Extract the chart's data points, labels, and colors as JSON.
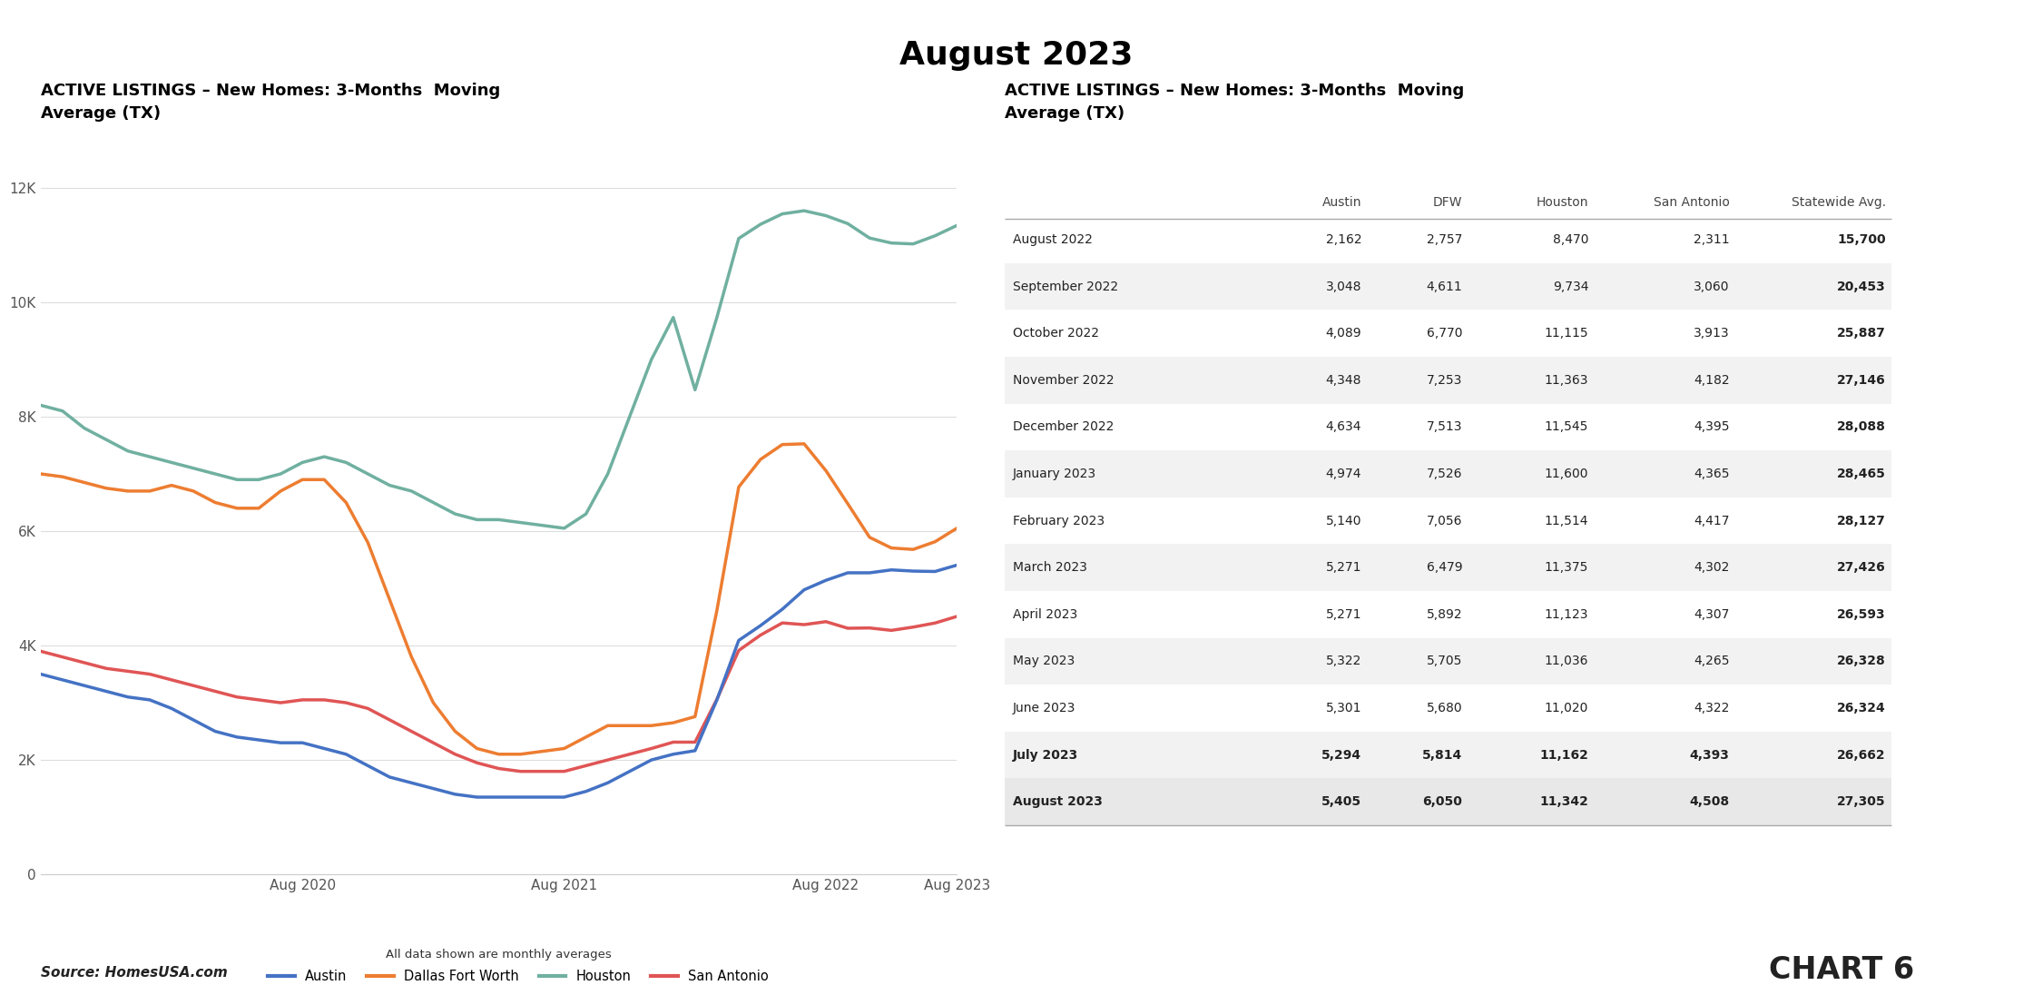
{
  "title": "August 2023",
  "chart_title": "ACTIVE LISTINGS – New Homes: 3-Months  Moving\nAverage (TX)",
  "table_title": "ACTIVE LISTINGS – New Homes: 3-Months  Moving\nAverage (TX)",
  "source": "Source: HomesUSA.com",
  "chart_label": "CHART 6",
  "footnote": "All data shown are monthly averages",
  "colors": {
    "Austin": "#4472c4",
    "Dallas Fort Worth": "#ed7d31",
    "Houston": "#70b0a0",
    "San Antonio": "#e05555"
  },
  "legend": [
    "Austin",
    "Dallas Fort Worth",
    "Houston",
    "San Antonio"
  ],
  "Austin": [
    3500,
    3400,
    3300,
    3200,
    3100,
    3050,
    2900,
    2700,
    2500,
    2400,
    2350,
    2300,
    2300,
    2200,
    2100,
    1900,
    1700,
    1600,
    1500,
    1400,
    1350,
    1350,
    1350,
    1350,
    1350,
    1450,
    1600,
    1800,
    2000,
    2100,
    2162,
    3048,
    4089,
    4348,
    4634,
    4974,
    5140,
    5271,
    5271,
    5322,
    5301,
    5294,
    5405
  ],
  "Dallas Fort Worth": [
    7000,
    6950,
    6850,
    6750,
    6700,
    6700,
    6800,
    6700,
    6500,
    6400,
    6400,
    6700,
    6900,
    6900,
    6500,
    5800,
    4800,
    3800,
    3000,
    2500,
    2200,
    2100,
    2100,
    2150,
    2200,
    2400,
    2600,
    2600,
    2600,
    2650,
    2757,
    4611,
    6770,
    7253,
    7513,
    7526,
    7056,
    6479,
    5892,
    5705,
    5680,
    5814,
    6050
  ],
  "Houston": [
    8200,
    8100,
    7800,
    7600,
    7400,
    7300,
    7200,
    7100,
    7000,
    6900,
    6900,
    7000,
    7200,
    7300,
    7200,
    7000,
    6800,
    6700,
    6500,
    6300,
    6200,
    6200,
    6150,
    6100,
    6050,
    6300,
    7000,
    8000,
    9000,
    9734,
    8470,
    9734,
    11115,
    11363,
    11545,
    11600,
    11514,
    11375,
    11123,
    11036,
    11020,
    11162,
    11342
  ],
  "San Antonio": [
    3900,
    3800,
    3700,
    3600,
    3550,
    3500,
    3400,
    3300,
    3200,
    3100,
    3050,
    3000,
    3050,
    3050,
    3000,
    2900,
    2700,
    2500,
    2300,
    2100,
    1950,
    1850,
    1800,
    1800,
    1800,
    1900,
    2000,
    2100,
    2200,
    2311,
    2311,
    3060,
    3913,
    4182,
    4395,
    4365,
    4417,
    4302,
    4307,
    4265,
    4322,
    4393,
    4508
  ],
  "yticks": [
    0,
    2000,
    4000,
    6000,
    8000,
    10000,
    12000
  ],
  "ytick_labels": [
    "0",
    "2K",
    "4K",
    "6K",
    "8K",
    "10K",
    "12K"
  ],
  "ylim": [
    0,
    13000
  ],
  "xtick_positions": [
    12,
    24,
    36,
    42
  ],
  "xtick_labels": [
    "Aug 2020",
    "Aug 2021",
    "Aug 2022",
    "Aug 2023"
  ],
  "table_rows": [
    [
      "August 2022",
      "2,162",
      "2,757",
      "8,470",
      "2,311",
      "15,700"
    ],
    [
      "September 2022",
      "3,048",
      "4,611",
      "9,734",
      "3,060",
      "20,453"
    ],
    [
      "October 2022",
      "4,089",
      "6,770",
      "11,115",
      "3,913",
      "25,887"
    ],
    [
      "November 2022",
      "4,348",
      "7,253",
      "11,363",
      "4,182",
      "27,146"
    ],
    [
      "December 2022",
      "4,634",
      "7,513",
      "11,545",
      "4,395",
      "28,088"
    ],
    [
      "January 2023",
      "4,974",
      "7,526",
      "11,600",
      "4,365",
      "28,465"
    ],
    [
      "February 2023",
      "5,140",
      "7,056",
      "11,514",
      "4,417",
      "28,127"
    ],
    [
      "March 2023",
      "5,271",
      "6,479",
      "11,375",
      "4,302",
      "27,426"
    ],
    [
      "April 2023",
      "5,271",
      "5,892",
      "11,123",
      "4,307",
      "26,593"
    ],
    [
      "May 2023",
      "5,322",
      "5,705",
      "11,036",
      "4,265",
      "26,328"
    ],
    [
      "June 2023",
      "5,301",
      "5,680",
      "11,020",
      "4,322",
      "26,324"
    ],
    [
      "July 2023",
      "5,294",
      "5,814",
      "11,162",
      "4,393",
      "26,662"
    ],
    [
      "August 2023",
      "5,405",
      "6,050",
      "11,342",
      "4,508",
      "27,305"
    ]
  ],
  "table_headers": [
    "",
    "Austin",
    "DFW",
    "Houston",
    "San Antonio",
    "Statewide Avg."
  ],
  "col_widths": [
    0.235,
    0.125,
    0.1,
    0.125,
    0.14,
    0.155
  ],
  "shaded_rows": [
    1,
    3,
    5,
    7,
    9,
    11
  ],
  "last_row_idx": 12
}
